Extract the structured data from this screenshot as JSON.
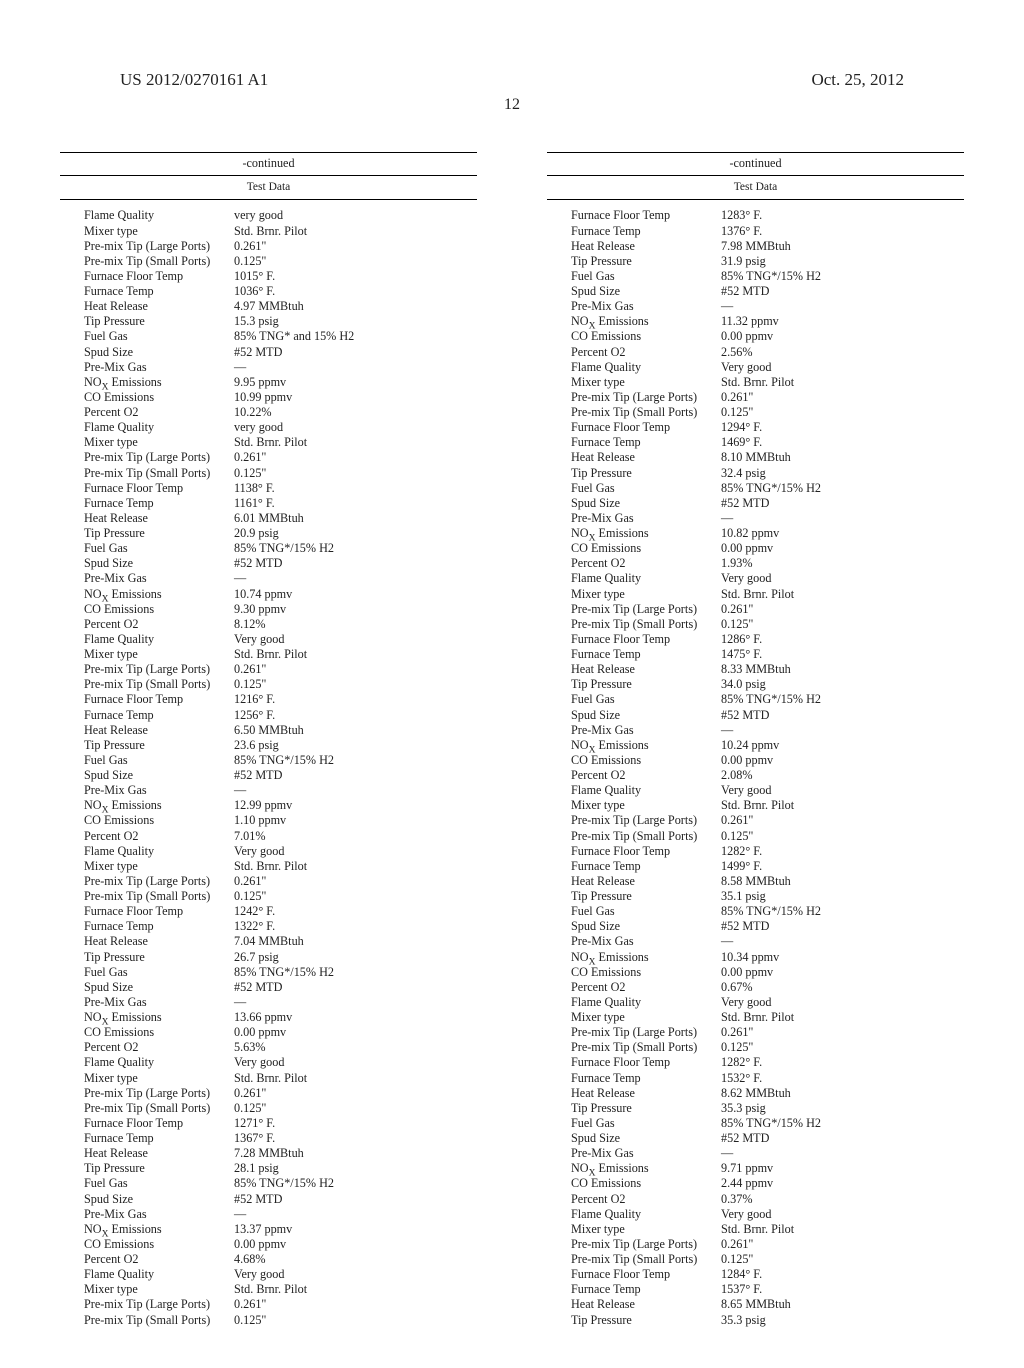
{
  "header": {
    "left": "US 2012/0270161 A1",
    "right": "Oct. 25, 2012",
    "page_number": "12"
  },
  "labels": {
    "continued": "-continued",
    "test_data": "Test Data"
  },
  "left_rows": [
    {
      "k": "Flame Quality",
      "v": "very good"
    },
    {
      "k": "Mixer type",
      "v": "Std. Brnr. Pilot"
    },
    {
      "k": "Pre-mix Tip (Large Ports)",
      "v": "0.261\""
    },
    {
      "k": "Pre-mix Tip (Small Ports)",
      "v": "0.125\""
    },
    {
      "k": "Furnace Floor Temp",
      "v": "1015° F."
    },
    {
      "k": "Furnace Temp",
      "v": "1036° F."
    },
    {
      "k": "Heat Release",
      "v": "4.97 MMBtuh"
    },
    {
      "k": "Tip Pressure",
      "v": "15.3 psig"
    },
    {
      "k": "Fuel Gas",
      "v": "85% TNG* and 15% H2"
    },
    {
      "k": "Spud Size",
      "v": "#52 MTD"
    },
    {
      "k": "Pre-Mix Gas",
      "v": "—"
    },
    {
      "k": "NO<sub>X</sub> Emissions",
      "v": "9.95 ppmv"
    },
    {
      "k": "CO Emissions",
      "v": "10.99 ppmv"
    },
    {
      "k": "Percent O2",
      "v": "10.22%"
    },
    {
      "k": "Flame Quality",
      "v": "very good"
    },
    {
      "k": "Mixer type",
      "v": "Std. Brnr. Pilot"
    },
    {
      "k": "Pre-mix Tip (Large Ports)",
      "v": "0.261\""
    },
    {
      "k": "Pre-mix Tip (Small Ports)",
      "v": "0.125\""
    },
    {
      "k": "Furnace Floor Temp",
      "v": "1138° F."
    },
    {
      "k": "Furnace Temp",
      "v": "1161° F."
    },
    {
      "k": "Heat Release",
      "v": "6.01 MMBtuh"
    },
    {
      "k": "Tip Pressure",
      "v": "20.9 psig"
    },
    {
      "k": "Fuel Gas",
      "v": "85% TNG*/15% H2"
    },
    {
      "k": "Spud Size",
      "v": "#52 MTD"
    },
    {
      "k": "Pre-Mix Gas",
      "v": "—"
    },
    {
      "k": "NO<sub>X</sub> Emissions",
      "v": "10.74 ppmv"
    },
    {
      "k": "CO Emissions",
      "v": "9.30 ppmv"
    },
    {
      "k": "Percent O2",
      "v": "8.12%"
    },
    {
      "k": "Flame Quality",
      "v": "Very good"
    },
    {
      "k": "Mixer type",
      "v": "Std. Brnr. Pilot"
    },
    {
      "k": "Pre-mix Tip (Large Ports)",
      "v": "0.261\""
    },
    {
      "k": "Pre-mix Tip (Small Ports)",
      "v": "0.125\""
    },
    {
      "k": "Furnace Floor Temp",
      "v": "1216° F."
    },
    {
      "k": "Furnace Temp",
      "v": "1256° F."
    },
    {
      "k": "Heat Release",
      "v": "6.50 MMBtuh"
    },
    {
      "k": "Tip Pressure",
      "v": "23.6 psig"
    },
    {
      "k": "Fuel Gas",
      "v": "85% TNG*/15% H2"
    },
    {
      "k": "Spud Size",
      "v": "#52 MTD"
    },
    {
      "k": "Pre-Mix Gas",
      "v": "—"
    },
    {
      "k": "NO<sub>X</sub> Emissions",
      "v": "12.99 ppmv"
    },
    {
      "k": "CO Emissions",
      "v": "1.10 ppmv"
    },
    {
      "k": "Percent O2",
      "v": "7.01%"
    },
    {
      "k": "Flame Quality",
      "v": "Very good"
    },
    {
      "k": "Mixer type",
      "v": "Std. Brnr. Pilot"
    },
    {
      "k": "Pre-mix Tip (Large Ports)",
      "v": "0.261\""
    },
    {
      "k": "Pre-mix Tip (Small Ports)",
      "v": "0.125\""
    },
    {
      "k": "Furnace Floor Temp",
      "v": "1242° F."
    },
    {
      "k": "Furnace Temp",
      "v": "1322° F."
    },
    {
      "k": "Heat Release",
      "v": "7.04 MMBtuh"
    },
    {
      "k": "Tip Pressure",
      "v": "26.7 psig"
    },
    {
      "k": "Fuel Gas",
      "v": "85% TNG*/15% H2"
    },
    {
      "k": "Spud Size",
      "v": "#52 MTD"
    },
    {
      "k": "Pre-Mix Gas",
      "v": "—"
    },
    {
      "k": "NO<sub>X</sub> Emissions",
      "v": "13.66 ppmv"
    },
    {
      "k": "CO Emissions",
      "v": "0.00 ppmv"
    },
    {
      "k": "Percent O2",
      "v": "5.63%"
    },
    {
      "k": "Flame Quality",
      "v": "Very good"
    },
    {
      "k": "Mixer type",
      "v": "Std. Brnr. Pilot"
    },
    {
      "k": "Pre-mix Tip (Large Ports)",
      "v": "0.261\""
    },
    {
      "k": "Pre-mix Tip (Small Ports)",
      "v": "0.125\""
    },
    {
      "k": "Furnace Floor Temp",
      "v": "1271° F."
    },
    {
      "k": "Furnace Temp",
      "v": "1367° F."
    },
    {
      "k": "Heat Release",
      "v": "7.28 MMBtuh"
    },
    {
      "k": "Tip Pressure",
      "v": "28.1 psig"
    },
    {
      "k": "Fuel Gas",
      "v": "85% TNG*/15% H2"
    },
    {
      "k": "Spud Size",
      "v": "#52 MTD"
    },
    {
      "k": "Pre-Mix Gas",
      "v": "—"
    },
    {
      "k": "NO<sub>X</sub> Emissions",
      "v": "13.37 ppmv"
    },
    {
      "k": "CO Emissions",
      "v": "0.00 ppmv"
    },
    {
      "k": "Percent O2",
      "v": "4.68%"
    },
    {
      "k": "Flame Quality",
      "v": "Very good"
    },
    {
      "k": "Mixer type",
      "v": "Std. Brnr. Pilot"
    },
    {
      "k": "Pre-mix Tip (Large Ports)",
      "v": "0.261\""
    },
    {
      "k": "Pre-mix Tip (Small Ports)",
      "v": "0.125\""
    }
  ],
  "right_rows": [
    {
      "k": "Furnace Floor Temp",
      "v": "1283° F."
    },
    {
      "k": "Furnace Temp",
      "v": "1376° F."
    },
    {
      "k": "Heat Release",
      "v": "7.98 MMBtuh"
    },
    {
      "k": "Tip Pressure",
      "v": "31.9 psig"
    },
    {
      "k": "Fuel Gas",
      "v": "85% TNG*/15% H2"
    },
    {
      "k": "Spud Size",
      "v": "#52 MTD"
    },
    {
      "k": "Pre-Mix Gas",
      "v": "—"
    },
    {
      "k": "NO<sub>X</sub> Emissions",
      "v": "11.32 ppmv"
    },
    {
      "k": "CO Emissions",
      "v": "0.00 ppmv"
    },
    {
      "k": "Percent O2",
      "v": "2.56%"
    },
    {
      "k": "Flame Quality",
      "v": "Very good"
    },
    {
      "k": "Mixer type",
      "v": "Std. Brnr. Pilot"
    },
    {
      "k": "Pre-mix Tip (Large Ports)",
      "v": "0.261\""
    },
    {
      "k": "Pre-mix Tip (Small Ports)",
      "v": "0.125\""
    },
    {
      "k": "Furnace Floor Temp",
      "v": "1294° F."
    },
    {
      "k": "Furnace Temp",
      "v": "1469° F."
    },
    {
      "k": "Heat Release",
      "v": "8.10 MMBtuh"
    },
    {
      "k": "Tip Pressure",
      "v": "32.4 psig"
    },
    {
      "k": "Fuel Gas",
      "v": "85% TNG*/15% H2"
    },
    {
      "k": "Spud Size",
      "v": "#52 MTD"
    },
    {
      "k": "Pre-Mix Gas",
      "v": "—"
    },
    {
      "k": "NO<sub>X</sub> Emissions",
      "v": "10.82 ppmv"
    },
    {
      "k": "CO Emissions",
      "v": "0.00 ppmv"
    },
    {
      "k": "Percent O2",
      "v": "1.93%"
    },
    {
      "k": "Flame Quality",
      "v": "Very good"
    },
    {
      "k": "Mixer type",
      "v": "Std. Brnr. Pilot"
    },
    {
      "k": "Pre-mix Tip (Large Ports)",
      "v": "0.261\""
    },
    {
      "k": "Pre-mix Tip (Small Ports)",
      "v": "0.125\""
    },
    {
      "k": "Furnace Floor Temp",
      "v": "1286° F."
    },
    {
      "k": "Furnace Temp",
      "v": "1475° F."
    },
    {
      "k": "Heat Release",
      "v": "8.33 MMBtuh"
    },
    {
      "k": "Tip Pressure",
      "v": "34.0 psig"
    },
    {
      "k": "Fuel Gas",
      "v": "85% TNG*/15% H2"
    },
    {
      "k": "Spud Size",
      "v": "#52 MTD"
    },
    {
      "k": "Pre-Mix Gas",
      "v": "—"
    },
    {
      "k": "NO<sub>X</sub> Emissions",
      "v": "10.24 ppmv"
    },
    {
      "k": "CO Emissions",
      "v": "0.00 ppmv"
    },
    {
      "k": "Percent O2",
      "v": "2.08%"
    },
    {
      "k": "Flame Quality",
      "v": "Very good"
    },
    {
      "k": "Mixer type",
      "v": "Std. Brnr. Pilot"
    },
    {
      "k": "Pre-mix Tip (Large Ports)",
      "v": "0.261\""
    },
    {
      "k": "Pre-mix Tip (Small Ports)",
      "v": "0.125\""
    },
    {
      "k": "Furnace Floor Temp",
      "v": "1282° F."
    },
    {
      "k": "Furnace Temp",
      "v": "1499° F."
    },
    {
      "k": "Heat Release",
      "v": "8.58 MMBtuh"
    },
    {
      "k": "Tip Pressure",
      "v": "35.1 psig"
    },
    {
      "k": "Fuel Gas",
      "v": "85% TNG*/15% H2"
    },
    {
      "k": "Spud Size",
      "v": "#52 MTD"
    },
    {
      "k": "Pre-Mix Gas",
      "v": "—"
    },
    {
      "k": "NO<sub>X</sub> Emissions",
      "v": "10.34 ppmv"
    },
    {
      "k": "CO Emissions",
      "v": "0.00 ppmv"
    },
    {
      "k": "Percent O2",
      "v": "0.67%"
    },
    {
      "k": "Flame Quality",
      "v": "Very good"
    },
    {
      "k": "Mixer type",
      "v": "Std. Brnr. Pilot"
    },
    {
      "k": "Pre-mix Tip (Large Ports)",
      "v": "0.261\""
    },
    {
      "k": "Pre-mix Tip (Small Ports)",
      "v": "0.125\""
    },
    {
      "k": "Furnace Floor Temp",
      "v": "1282° F."
    },
    {
      "k": "Furnace Temp",
      "v": "1532° F."
    },
    {
      "k": "Heat Release",
      "v": "8.62 MMBtuh"
    },
    {
      "k": "Tip Pressure",
      "v": "35.3 psig"
    },
    {
      "k": "Fuel Gas",
      "v": "85% TNG*/15% H2"
    },
    {
      "k": "Spud Size",
      "v": "#52 MTD"
    },
    {
      "k": "Pre-Mix Gas",
      "v": "—"
    },
    {
      "k": "NO<sub>X</sub> Emissions",
      "v": "9.71 ppmv"
    },
    {
      "k": "CO Emissions",
      "v": "2.44 ppmv"
    },
    {
      "k": "Percent O2",
      "v": "0.37%"
    },
    {
      "k": "Flame Quality",
      "v": "Very good"
    },
    {
      "k": "Mixer type",
      "v": "Std. Brnr. Pilot"
    },
    {
      "k": "Pre-mix Tip (Large Ports)",
      "v": "0.261\""
    },
    {
      "k": "Pre-mix Tip (Small Ports)",
      "v": "0.125\""
    },
    {
      "k": "Furnace Floor Temp",
      "v": "1284° F."
    },
    {
      "k": "Furnace Temp",
      "v": "1537° F."
    },
    {
      "k": "Heat Release",
      "v": "8.65 MMBtuh"
    },
    {
      "k": "Tip Pressure",
      "v": "35.3 psig"
    }
  ]
}
